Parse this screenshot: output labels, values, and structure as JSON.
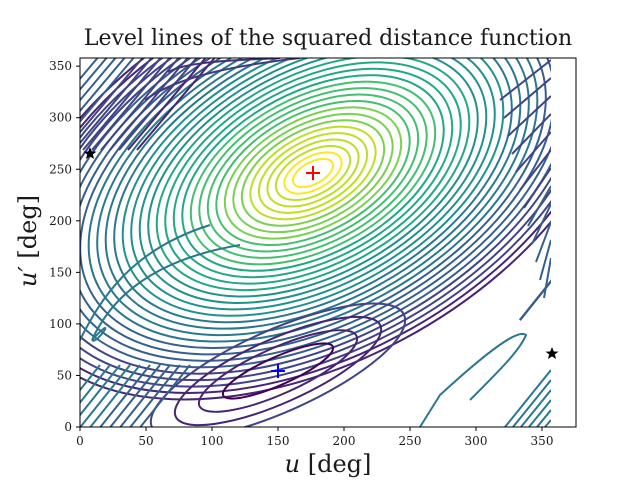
{
  "title": "Level lines of the squared distance function",
  "xlabel": {
    "var": "u",
    "unit": "[deg]"
  },
  "ylabel": {
    "var": "u′",
    "unit": "[deg]"
  },
  "chart_data": {
    "type": "contour",
    "title": "Level lines of the squared distance function",
    "xlabel": "u [deg]",
    "ylabel": "u' [deg]",
    "xlim": [
      0,
      376
    ],
    "ylim": [
      0,
      358
    ],
    "xticks": [
      0,
      50,
      100,
      150,
      200,
      250,
      300,
      350
    ],
    "yticks": [
      0,
      50,
      100,
      150,
      200,
      250,
      300,
      350
    ],
    "colormap": "viridis",
    "grid": false,
    "legend": null,
    "markers": [
      {
        "symbol": "+",
        "color": "#ff0000",
        "u": 176,
        "u_prime": 246,
        "meaning": "maximum"
      },
      {
        "symbol": "+",
        "color": "#0000ff",
        "u": 150,
        "u_prime": 54,
        "meaning": "minimum"
      },
      {
        "symbol": "star",
        "color": "#000000",
        "u": 8,
        "u_prime": 266
      },
      {
        "symbol": "star",
        "color": "#000000",
        "u": 358,
        "u_prime": 72
      }
    ],
    "contour_domain": {
      "u": [
        0,
        360
      ],
      "u_prime": [
        0,
        360
      ]
    }
  },
  "axes": {
    "x_tick_labels": [
      "0",
      "50",
      "100",
      "150",
      "200",
      "250",
      "300",
      "350"
    ],
    "y_tick_labels": [
      "0",
      "50",
      "100",
      "150",
      "200",
      "250",
      "300",
      "350"
    ]
  }
}
